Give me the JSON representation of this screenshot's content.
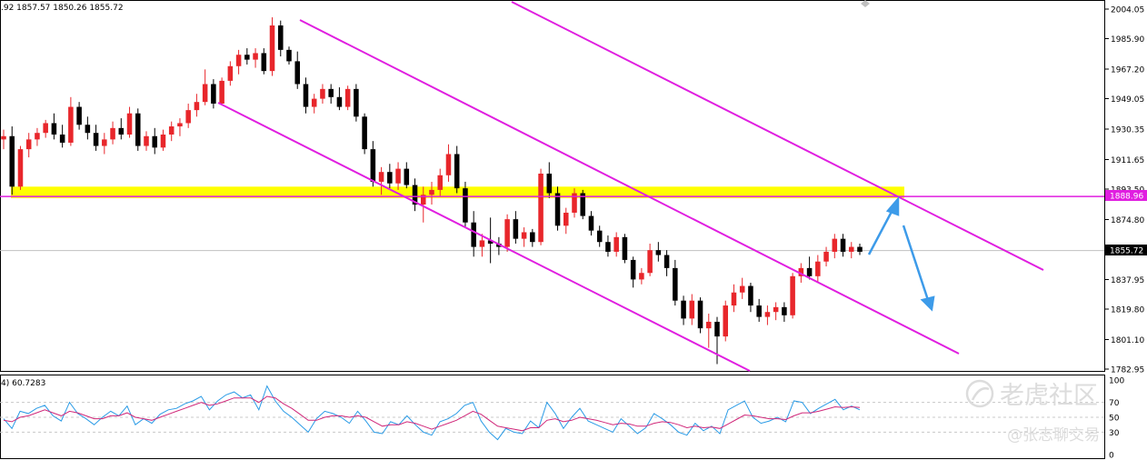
{
  "info": {
    "ohlc_text": ".92 1857.57 1850.26 1855.72",
    "indicator_text": "4) 60.7283"
  },
  "colors": {
    "bull": "#e8262b",
    "bear": "#000000",
    "channel": "#e01ee0",
    "zone": "#ffff00",
    "arrow": "#3d9be9",
    "hline": "#e01ee0",
    "rsi_fast": "#2a9be6",
    "rsi_slow": "#d0287a",
    "grid": "#c8c8c8"
  },
  "chart_data": [
    {
      "type": "candlestick",
      "title": "",
      "ylim": [
        1782.95,
        2004.05
      ],
      "y_ticks": [
        "2004.05",
        "1985.90",
        "1967.20",
        "1949.05",
        "1930.35",
        "1911.65",
        "1893.50",
        "1874.80",
        "1837.95",
        "1819.80",
        "1801.10",
        "1782.95"
      ],
      "current_price": 1855.72,
      "current_price_label": "1855.72",
      "resistance_level": 1888.96,
      "resistance_label": "1888.96",
      "resistance_zone": [
        1888.0,
        1895.0
      ],
      "candles": [
        {
          "o": 1924,
          "h": 1930,
          "l": 1918,
          "c": 1926
        },
        {
          "o": 1926,
          "h": 1932,
          "l": 1890,
          "c": 1895
        },
        {
          "o": 1895,
          "h": 1920,
          "l": 1893,
          "c": 1918
        },
        {
          "o": 1918,
          "h": 1928,
          "l": 1913,
          "c": 1924
        },
        {
          "o": 1924,
          "h": 1931,
          "l": 1920,
          "c": 1928
        },
        {
          "o": 1928,
          "h": 1936,
          "l": 1925,
          "c": 1934
        },
        {
          "o": 1934,
          "h": 1940,
          "l": 1924,
          "c": 1927
        },
        {
          "o": 1927,
          "h": 1933,
          "l": 1919,
          "c": 1922
        },
        {
          "o": 1922,
          "h": 1950,
          "l": 1920,
          "c": 1944
        },
        {
          "o": 1944,
          "h": 1947,
          "l": 1930,
          "c": 1933
        },
        {
          "o": 1933,
          "h": 1938,
          "l": 1924,
          "c": 1928
        },
        {
          "o": 1928,
          "h": 1933,
          "l": 1917,
          "c": 1920
        },
        {
          "o": 1920,
          "h": 1928,
          "l": 1915,
          "c": 1924
        },
        {
          "o": 1924,
          "h": 1935,
          "l": 1921,
          "c": 1931
        },
        {
          "o": 1931,
          "h": 1937,
          "l": 1924,
          "c": 1927
        },
        {
          "o": 1927,
          "h": 1944,
          "l": 1925,
          "c": 1940
        },
        {
          "o": 1940,
          "h": 1943,
          "l": 1917,
          "c": 1920
        },
        {
          "o": 1920,
          "h": 1929,
          "l": 1917,
          "c": 1926
        },
        {
          "o": 1926,
          "h": 1931,
          "l": 1915,
          "c": 1919
        },
        {
          "o": 1919,
          "h": 1930,
          "l": 1917,
          "c": 1927
        },
        {
          "o": 1927,
          "h": 1935,
          "l": 1923,
          "c": 1932
        },
        {
          "o": 1932,
          "h": 1937,
          "l": 1926,
          "c": 1934
        },
        {
          "o": 1934,
          "h": 1946,
          "l": 1931,
          "c": 1942
        },
        {
          "o": 1942,
          "h": 1952,
          "l": 1938,
          "c": 1947
        },
        {
          "o": 1947,
          "h": 1967,
          "l": 1945,
          "c": 1958
        },
        {
          "o": 1958,
          "h": 1961,
          "l": 1943,
          "c": 1946
        },
        {
          "o": 1946,
          "h": 1962,
          "l": 1945,
          "c": 1960
        },
        {
          "o": 1960,
          "h": 1972,
          "l": 1957,
          "c": 1969
        },
        {
          "o": 1969,
          "h": 1979,
          "l": 1964,
          "c": 1976
        },
        {
          "o": 1976,
          "h": 1980,
          "l": 1970,
          "c": 1973
        },
        {
          "o": 1973,
          "h": 1980,
          "l": 1968,
          "c": 1977
        },
        {
          "o": 1977,
          "h": 1980,
          "l": 1964,
          "c": 1966
        },
        {
          "o": 1966,
          "h": 1999,
          "l": 1963,
          "c": 1994
        },
        {
          "o": 1994,
          "h": 1997,
          "l": 1975,
          "c": 1979
        },
        {
          "o": 1979,
          "h": 1981,
          "l": 1970,
          "c": 1972
        },
        {
          "o": 1972,
          "h": 1978,
          "l": 1955,
          "c": 1958
        },
        {
          "o": 1958,
          "h": 1962,
          "l": 1940,
          "c": 1944
        },
        {
          "o": 1944,
          "h": 1952,
          "l": 1940,
          "c": 1949
        },
        {
          "o": 1949,
          "h": 1958,
          "l": 1946,
          "c": 1955
        },
        {
          "o": 1955,
          "h": 1958,
          "l": 1946,
          "c": 1950
        },
        {
          "o": 1950,
          "h": 1956,
          "l": 1942,
          "c": 1944
        },
        {
          "o": 1944,
          "h": 1957,
          "l": 1942,
          "c": 1955
        },
        {
          "o": 1955,
          "h": 1958,
          "l": 1935,
          "c": 1938
        },
        {
          "o": 1938,
          "h": 1940,
          "l": 1915,
          "c": 1918
        },
        {
          "o": 1918,
          "h": 1923,
          "l": 1895,
          "c": 1898
        },
        {
          "o": 1898,
          "h": 1907,
          "l": 1890,
          "c": 1904
        },
        {
          "o": 1904,
          "h": 1909,
          "l": 1894,
          "c": 1897
        },
        {
          "o": 1897,
          "h": 1910,
          "l": 1893,
          "c": 1906
        },
        {
          "o": 1906,
          "h": 1910,
          "l": 1894,
          "c": 1896
        },
        {
          "o": 1896,
          "h": 1900,
          "l": 1880,
          "c": 1884
        },
        {
          "o": 1884,
          "h": 1895,
          "l": 1873,
          "c": 1890
        },
        {
          "o": 1890,
          "h": 1898,
          "l": 1884,
          "c": 1893
        },
        {
          "o": 1893,
          "h": 1906,
          "l": 1889,
          "c": 1902
        },
        {
          "o": 1902,
          "h": 1921,
          "l": 1898,
          "c": 1915
        },
        {
          "o": 1915,
          "h": 1920,
          "l": 1891,
          "c": 1894
        },
        {
          "o": 1894,
          "h": 1898,
          "l": 1870,
          "c": 1873
        },
        {
          "o": 1873,
          "h": 1880,
          "l": 1852,
          "c": 1858
        },
        {
          "o": 1858,
          "h": 1866,
          "l": 1852,
          "c": 1862
        },
        {
          "o": 1862,
          "h": 1876,
          "l": 1848,
          "c": 1860
        },
        {
          "o": 1860,
          "h": 1864,
          "l": 1853,
          "c": 1858
        },
        {
          "o": 1858,
          "h": 1878,
          "l": 1855,
          "c": 1875
        },
        {
          "o": 1875,
          "h": 1880,
          "l": 1860,
          "c": 1863
        },
        {
          "o": 1863,
          "h": 1870,
          "l": 1858,
          "c": 1867
        },
        {
          "o": 1867,
          "h": 1869,
          "l": 1858,
          "c": 1861
        },
        {
          "o": 1861,
          "h": 1906,
          "l": 1859,
          "c": 1903
        },
        {
          "o": 1903,
          "h": 1910,
          "l": 1888,
          "c": 1891
        },
        {
          "o": 1891,
          "h": 1895,
          "l": 1868,
          "c": 1871
        },
        {
          "o": 1871,
          "h": 1882,
          "l": 1866,
          "c": 1879
        },
        {
          "o": 1879,
          "h": 1894,
          "l": 1876,
          "c": 1891
        },
        {
          "o": 1891,
          "h": 1893,
          "l": 1875,
          "c": 1877
        },
        {
          "o": 1877,
          "h": 1880,
          "l": 1865,
          "c": 1868
        },
        {
          "o": 1868,
          "h": 1871,
          "l": 1858,
          "c": 1861
        },
        {
          "o": 1861,
          "h": 1865,
          "l": 1852,
          "c": 1855
        },
        {
          "o": 1855,
          "h": 1867,
          "l": 1852,
          "c": 1864
        },
        {
          "o": 1864,
          "h": 1866,
          "l": 1848,
          "c": 1850
        },
        {
          "o": 1850,
          "h": 1852,
          "l": 1833,
          "c": 1838
        },
        {
          "o": 1838,
          "h": 1845,
          "l": 1835,
          "c": 1842
        },
        {
          "o": 1842,
          "h": 1860,
          "l": 1840,
          "c": 1856
        },
        {
          "o": 1856,
          "h": 1861,
          "l": 1849,
          "c": 1853
        },
        {
          "o": 1853,
          "h": 1856,
          "l": 1840,
          "c": 1845
        },
        {
          "o": 1845,
          "h": 1850,
          "l": 1822,
          "c": 1825
        },
        {
          "o": 1825,
          "h": 1828,
          "l": 1810,
          "c": 1814
        },
        {
          "o": 1814,
          "h": 1829,
          "l": 1810,
          "c": 1825
        },
        {
          "o": 1825,
          "h": 1827,
          "l": 1805,
          "c": 1808
        },
        {
          "o": 1808,
          "h": 1817,
          "l": 1796,
          "c": 1812
        },
        {
          "o": 1812,
          "h": 1815,
          "l": 1786,
          "c": 1803
        },
        {
          "o": 1803,
          "h": 1825,
          "l": 1800,
          "c": 1822
        },
        {
          "o": 1822,
          "h": 1835,
          "l": 1818,
          "c": 1830
        },
        {
          "o": 1830,
          "h": 1839,
          "l": 1826,
          "c": 1834
        },
        {
          "o": 1834,
          "h": 1836,
          "l": 1818,
          "c": 1822
        },
        {
          "o": 1822,
          "h": 1826,
          "l": 1812,
          "c": 1815
        },
        {
          "o": 1815,
          "h": 1822,
          "l": 1810,
          "c": 1818
        },
        {
          "o": 1818,
          "h": 1824,
          "l": 1813,
          "c": 1821
        },
        {
          "o": 1821,
          "h": 1824,
          "l": 1812,
          "c": 1816
        },
        {
          "o": 1816,
          "h": 1842,
          "l": 1814,
          "c": 1840
        },
        {
          "o": 1840,
          "h": 1848,
          "l": 1836,
          "c": 1845
        },
        {
          "o": 1845,
          "h": 1852,
          "l": 1838,
          "c": 1840
        },
        {
          "o": 1840,
          "h": 1853,
          "l": 1836,
          "c": 1849
        },
        {
          "o": 1849,
          "h": 1858,
          "l": 1846,
          "c": 1855
        },
        {
          "o": 1855,
          "h": 1866,
          "l": 1851,
          "c": 1863
        },
        {
          "o": 1863,
          "h": 1866,
          "l": 1852,
          "c": 1855
        },
        {
          "o": 1855,
          "h": 1861,
          "l": 1851,
          "c": 1858
        },
        {
          "o": 1858,
          "h": 1860,
          "l": 1853,
          "c": 1855
        }
      ]
    },
    {
      "type": "line",
      "title": "RSI",
      "label": "4) 60.7283",
      "ylim": [
        0,
        100
      ],
      "y_ticks": [
        "100",
        "70",
        "50",
        "30",
        "0"
      ],
      "series": [
        {
          "name": "",
          "values": [
            48,
            35,
            58,
            55,
            62,
            66,
            52,
            45,
            70,
            55,
            48,
            40,
            50,
            58,
            52,
            65,
            40,
            48,
            42,
            54,
            60,
            62,
            68,
            72,
            78,
            60,
            72,
            80,
            84,
            76,
            80,
            60,
            92,
            72,
            58,
            50,
            40,
            30,
            48,
            58,
            55,
            50,
            42,
            58,
            45,
            30,
            28,
            44,
            40,
            52,
            40,
            30,
            26,
            44,
            48,
            55,
            66,
            70,
            45,
            30,
            20,
            35,
            30,
            28,
            45,
            36,
            70,
            55,
            35,
            50,
            62,
            45,
            40,
            35,
            30,
            48,
            38,
            28,
            36,
            55,
            48,
            40,
            30,
            26,
            42,
            32,
            38,
            28,
            60,
            66,
            72,
            50,
            42,
            45,
            50,
            44,
            72,
            70,
            55,
            62,
            68,
            74,
            60,
            65,
            60
          ]
        },
        {
          "name": "",
          "values": [
            46,
            44,
            50,
            52,
            56,
            60,
            56,
            52,
            58,
            56,
            52,
            48,
            48,
            52,
            52,
            56,
            50,
            48,
            46,
            50,
            54,
            58,
            62,
            66,
            70,
            66,
            68,
            72,
            76,
            76,
            76,
            70,
            78,
            76,
            68,
            62,
            54,
            46,
            46,
            50,
            52,
            52,
            50,
            52,
            50,
            44,
            38,
            40,
            40,
            44,
            42,
            38,
            34,
            38,
            42,
            46,
            52,
            58,
            54,
            46,
            38,
            36,
            34,
            32,
            36,
            36,
            46,
            48,
            44,
            46,
            50,
            48,
            46,
            43,
            40,
            42,
            41,
            38,
            38,
            42,
            44,
            43,
            40,
            36,
            38,
            36,
            37,
            35,
            41,
            47,
            53,
            52,
            50,
            48,
            48,
            47,
            52,
            56,
            56,
            58,
            61,
            64,
            63,
            64,
            63
          ]
        }
      ]
    }
  ]
}
